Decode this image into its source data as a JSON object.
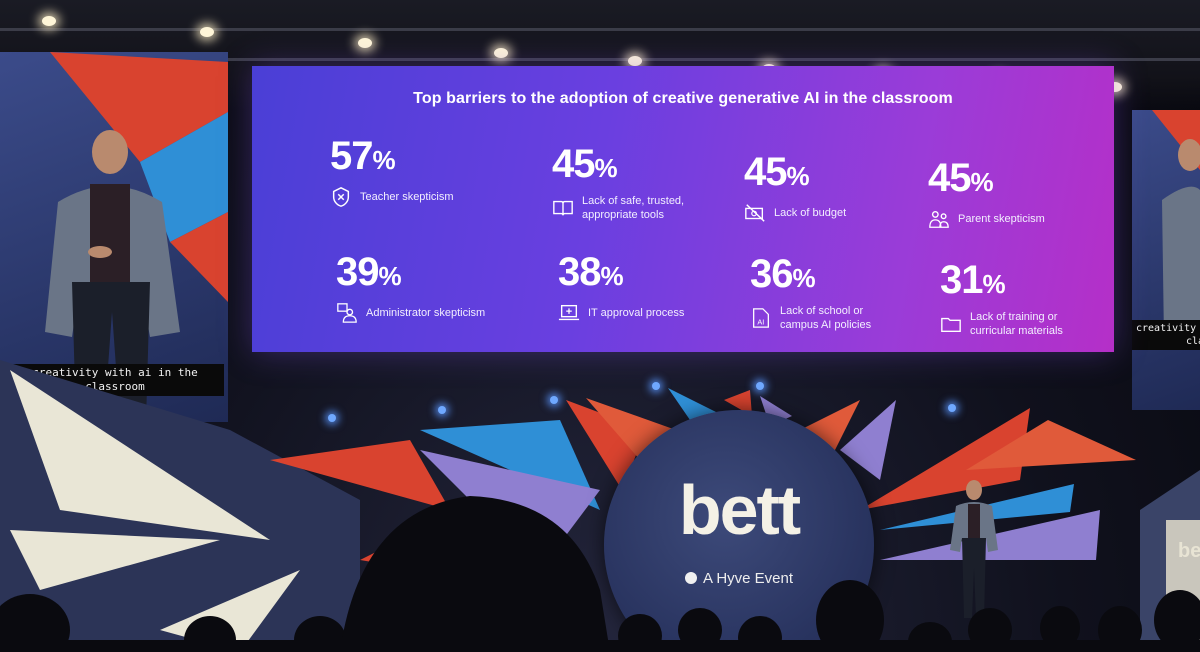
{
  "screen": {
    "title": "Top barriers to the adoption of creative generative AI in the classroom",
    "stats": [
      {
        "value": "57",
        "unit": "%",
        "label_lines": [
          "Teacher skepticism"
        ],
        "icon": "shield-x-icon"
      },
      {
        "value": "45",
        "unit": "%",
        "label_lines": [
          "Lack of safe, trusted,",
          "appropriate tools"
        ],
        "icon": "book-icon"
      },
      {
        "value": "45",
        "unit": "%",
        "label_lines": [
          "Lack of budget"
        ],
        "icon": "no-money-icon"
      },
      {
        "value": "45",
        "unit": "%",
        "label_lines": [
          "Parent skepticism"
        ],
        "icon": "people-icon"
      },
      {
        "value": "39",
        "unit": "%",
        "label_lines": [
          "Administrator skepticism"
        ],
        "icon": "admin-person-icon"
      },
      {
        "value": "38",
        "unit": "%",
        "label_lines": [
          "IT approval process"
        ],
        "icon": "laptop-plus-icon"
      },
      {
        "value": "36",
        "unit": "%",
        "label_lines": [
          "Lack of school or",
          "campus AI policies"
        ],
        "icon": "ai-document-icon"
      },
      {
        "value": "31",
        "unit": "%",
        "label_lines": [
          "Lack of training or",
          "curricular materials"
        ],
        "icon": "folder-icon"
      }
    ]
  },
  "caption_left": [
    "creativity with ai in the",
    "classroom"
  ],
  "caption_right": [
    "creativity",
    "cla"
  ],
  "logo": {
    "name": "bett",
    "tagline": "A Hyve Event"
  },
  "lectern_logo": "be",
  "colors": {
    "screen_start": "#4a3fd6",
    "screen_end": "#b52fc8",
    "accent_red": "#d9432f",
    "accent_blue": "#2f8fd6",
    "accent_lavender": "#8f7fd0",
    "disc": "#2a3561"
  }
}
